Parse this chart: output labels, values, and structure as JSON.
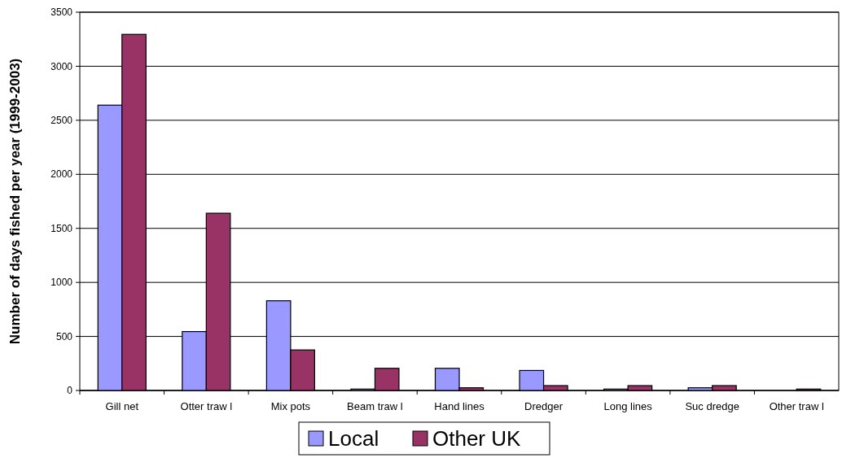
{
  "chart_data": {
    "type": "bar",
    "ylabel": "Number of days fished per year (1999-2003)",
    "categories": [
      "Gill net",
      "Otter traw l",
      "Mix pots",
      "Beam traw l",
      "Hand lines",
      "Dredger",
      "Long lines",
      "Suc dredge",
      "Other traw l"
    ],
    "series": [
      {
        "name": "Local",
        "color": "#9999ff",
        "values": [
          2640,
          545,
          830,
          13,
          205,
          185,
          13,
          25,
          0
        ]
      },
      {
        "name": "Other UK",
        "color": "#993366",
        "values": [
          3295,
          1640,
          375,
          205,
          25,
          45,
          45,
          45,
          13
        ]
      }
    ],
    "ylim": [
      0,
      3500
    ],
    "yticks": [
      0,
      500,
      1000,
      1500,
      2000,
      2500,
      3000,
      3500
    ],
    "grid": "y",
    "legend": "bottom"
  }
}
